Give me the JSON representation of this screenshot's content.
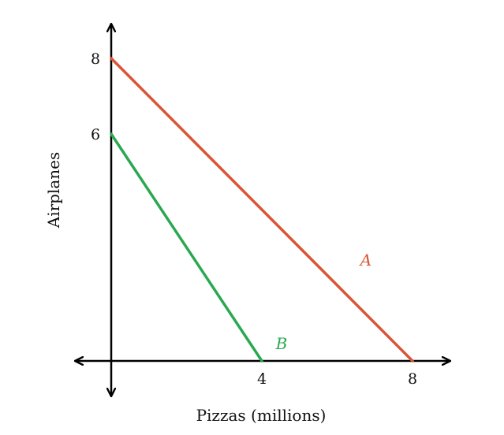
{
  "chart_data": {
    "type": "line",
    "xlabel": "Pizzas (millions)",
    "ylabel": "Airplanes",
    "xlim": [
      0,
      8
    ],
    "ylim": [
      0,
      8
    ],
    "x_ticks": [
      "4",
      "8"
    ],
    "y_ticks": [
      "6",
      "8"
    ],
    "grid": false,
    "series": [
      {
        "name": "A",
        "color": "#d95535",
        "x": [
          0,
          8
        ],
        "y": [
          8,
          0
        ]
      },
      {
        "name": "B",
        "color": "#2aa850",
        "x": [
          0,
          4
        ],
        "y": [
          6,
          0
        ]
      }
    ]
  }
}
